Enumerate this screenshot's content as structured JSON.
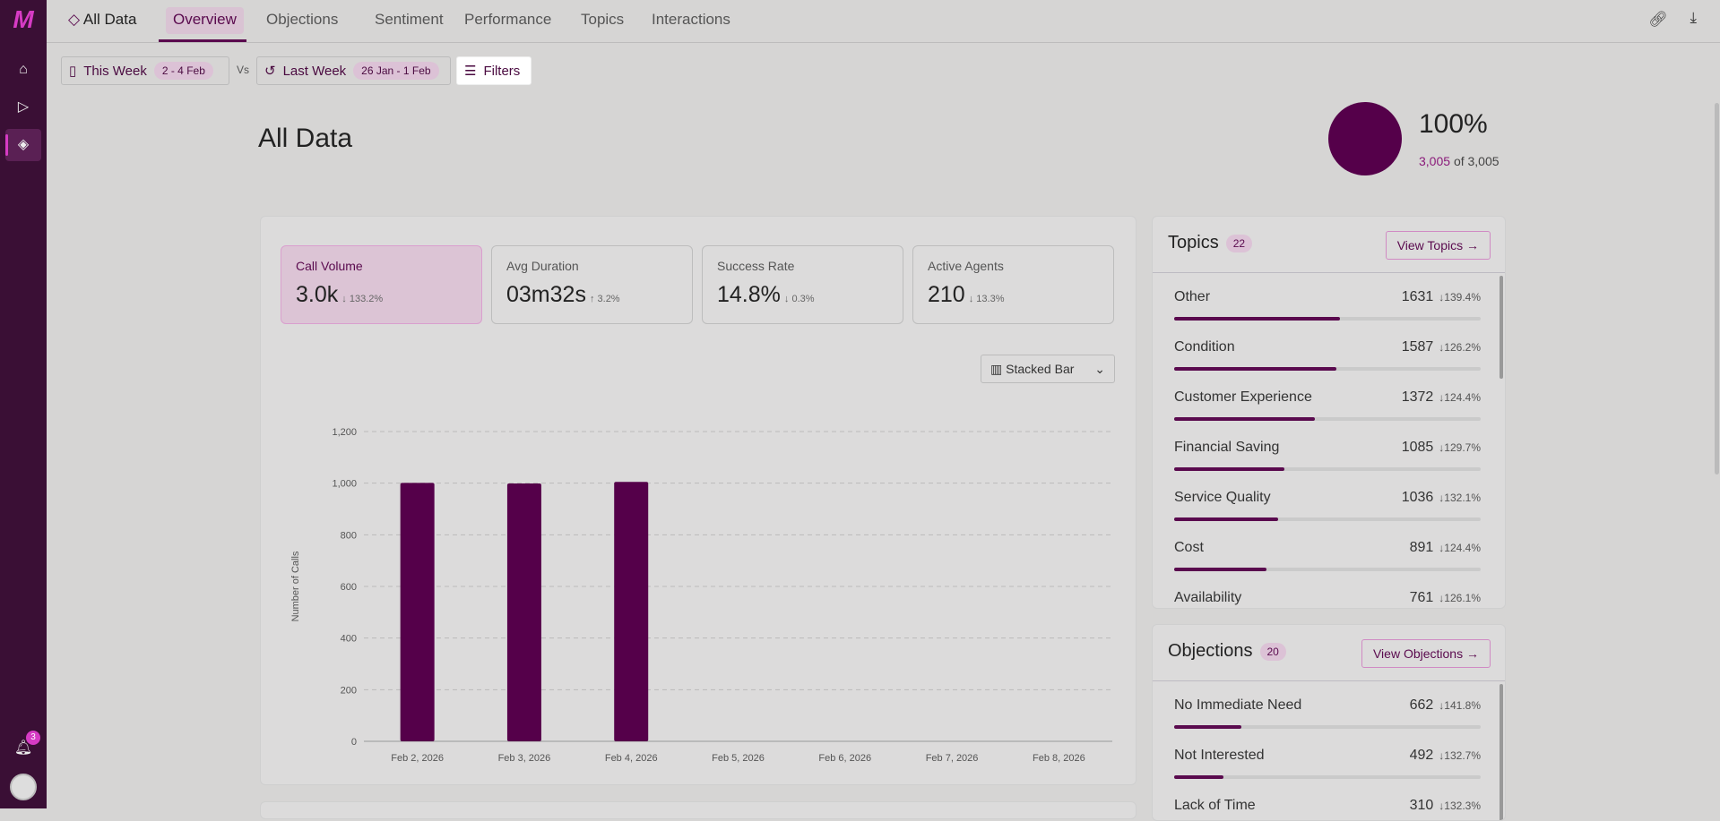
{
  "sidebar": {
    "notification_count": "3"
  },
  "header": {
    "breadcrumb": "All Data",
    "tabs": [
      "Overview",
      "Objections",
      "Sentiment",
      "Performance",
      "Topics",
      "Interactions"
    ]
  },
  "filters": {
    "this_week": "This Week",
    "this_week_range": "2 - 4 Feb",
    "vs": "Vs",
    "last_week": "Last Week",
    "last_week_range": "26 Jan - 1 Feb",
    "filters": "Filters"
  },
  "page": {
    "title": "All Data",
    "coverage_pct": "100%",
    "coverage_count": "3,005",
    "coverage_of": "of 3,005"
  },
  "kpis": [
    {
      "label": "Call Volume",
      "value": "3.0k",
      "delta": "133.2%",
      "dir": "down"
    },
    {
      "label": "Avg Duration",
      "value": "03m32s",
      "delta": "3.2%",
      "dir": "up"
    },
    {
      "label": "Success Rate",
      "value": "14.8%",
      "delta": "0.3%",
      "dir": "down"
    },
    {
      "label": "Active Agents",
      "value": "210",
      "delta": "13.3%",
      "dir": "down"
    }
  ],
  "chart_type_select": "Stacked Bar",
  "chart_data": {
    "type": "bar",
    "ylabel": "Number of Calls",
    "xlabel": "",
    "ylim": [
      0,
      1200
    ],
    "yticks": [
      0,
      200,
      400,
      600,
      800,
      1000,
      1200
    ],
    "yticklabels": [
      "0",
      "200",
      "400",
      "600",
      "800",
      "1,000",
      "1,200"
    ],
    "categories": [
      "Feb 2, 2026",
      "Feb 3, 2026",
      "Feb 4, 2026",
      "Feb 5, 2026",
      "Feb 6, 2026",
      "Feb 7, 2026",
      "Feb 8, 2026"
    ],
    "values": [
      1001,
      999,
      1005,
      0,
      0,
      0,
      0
    ],
    "color": "#55004a",
    "grid": true
  },
  "topics": {
    "title": "Topics",
    "count": "22",
    "button": "View Topics",
    "items": [
      {
        "name": "Other",
        "count": "1631",
        "delta": "139.4%",
        "pct": 54
      },
      {
        "name": "Condition",
        "count": "1587",
        "delta": "126.2%",
        "pct": 53
      },
      {
        "name": "Customer Experience",
        "count": "1372",
        "delta": "124.4%",
        "pct": 46
      },
      {
        "name": "Financial Saving",
        "count": "1085",
        "delta": "129.7%",
        "pct": 36
      },
      {
        "name": "Service Quality",
        "count": "1036",
        "delta": "132.1%",
        "pct": 34
      },
      {
        "name": "Cost",
        "count": "891",
        "delta": "124.4%",
        "pct": 30
      },
      {
        "name": "Availability",
        "count": "761",
        "delta": "126.1%",
        "pct": 25
      }
    ]
  },
  "objections": {
    "title": "Objections",
    "count": "20",
    "button": "View Objections",
    "items": [
      {
        "name": "No Immediate Need",
        "count": "662",
        "delta": "141.8%",
        "pct": 22
      },
      {
        "name": "Not Interested",
        "count": "492",
        "delta": "132.7%",
        "pct": 16
      },
      {
        "name": "Lack of Time",
        "count": "310",
        "delta": "132.3%",
        "pct": 10
      }
    ]
  }
}
